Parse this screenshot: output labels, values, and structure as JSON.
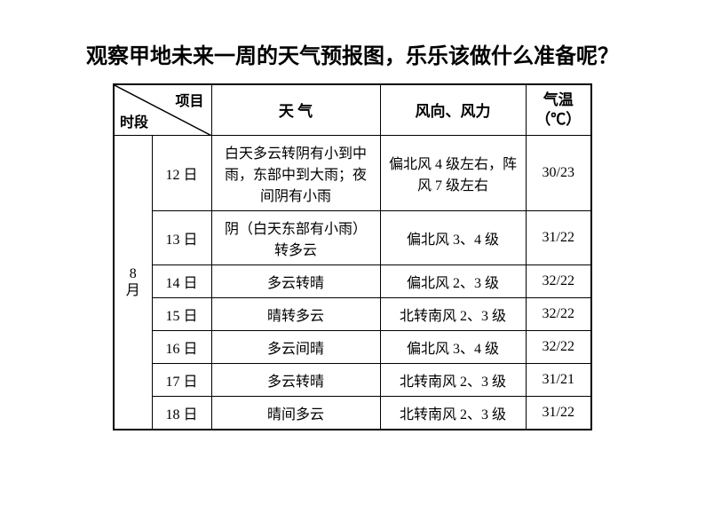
{
  "title": "观察甲地未来一周的天气预报图，乐乐该做什么准备呢？",
  "header": {
    "diag_top": "项目",
    "diag_bottom": "时段",
    "weather": "天 气",
    "wind": "风向、风力",
    "temp_label": "气温",
    "temp_unit": "（℃）"
  },
  "month": "8月",
  "rows": [
    {
      "day": "12 日",
      "weather": "白天多云转阴有小到中雨，东部中到大雨；夜间阴有小雨",
      "wind": "偏北风 4 级左右，阵风 7 级左右",
      "temp": "30/23"
    },
    {
      "day": "13 日",
      "weather": "阴（白天东部有小雨）转多云",
      "wind": "偏北风 3、4 级",
      "temp": "31/22"
    },
    {
      "day": "14 日",
      "weather": "多云转晴",
      "wind": "偏北风 2、3 级",
      "temp": "32/22"
    },
    {
      "day": "15 日",
      "weather": "晴转多云",
      "wind": "北转南风 2、3 级",
      "temp": "32/22"
    },
    {
      "day": "16 日",
      "weather": "多云间晴",
      "wind": "偏北风 3、4 级",
      "temp": "32/22"
    },
    {
      "day": "17 日",
      "weather": "多云转晴",
      "wind": "北转南风 2、3 级",
      "temp": "31/21"
    },
    {
      "day": "18 日",
      "weather": "晴间多云",
      "wind": "北转南风 2、3 级",
      "temp": "31/22"
    }
  ]
}
